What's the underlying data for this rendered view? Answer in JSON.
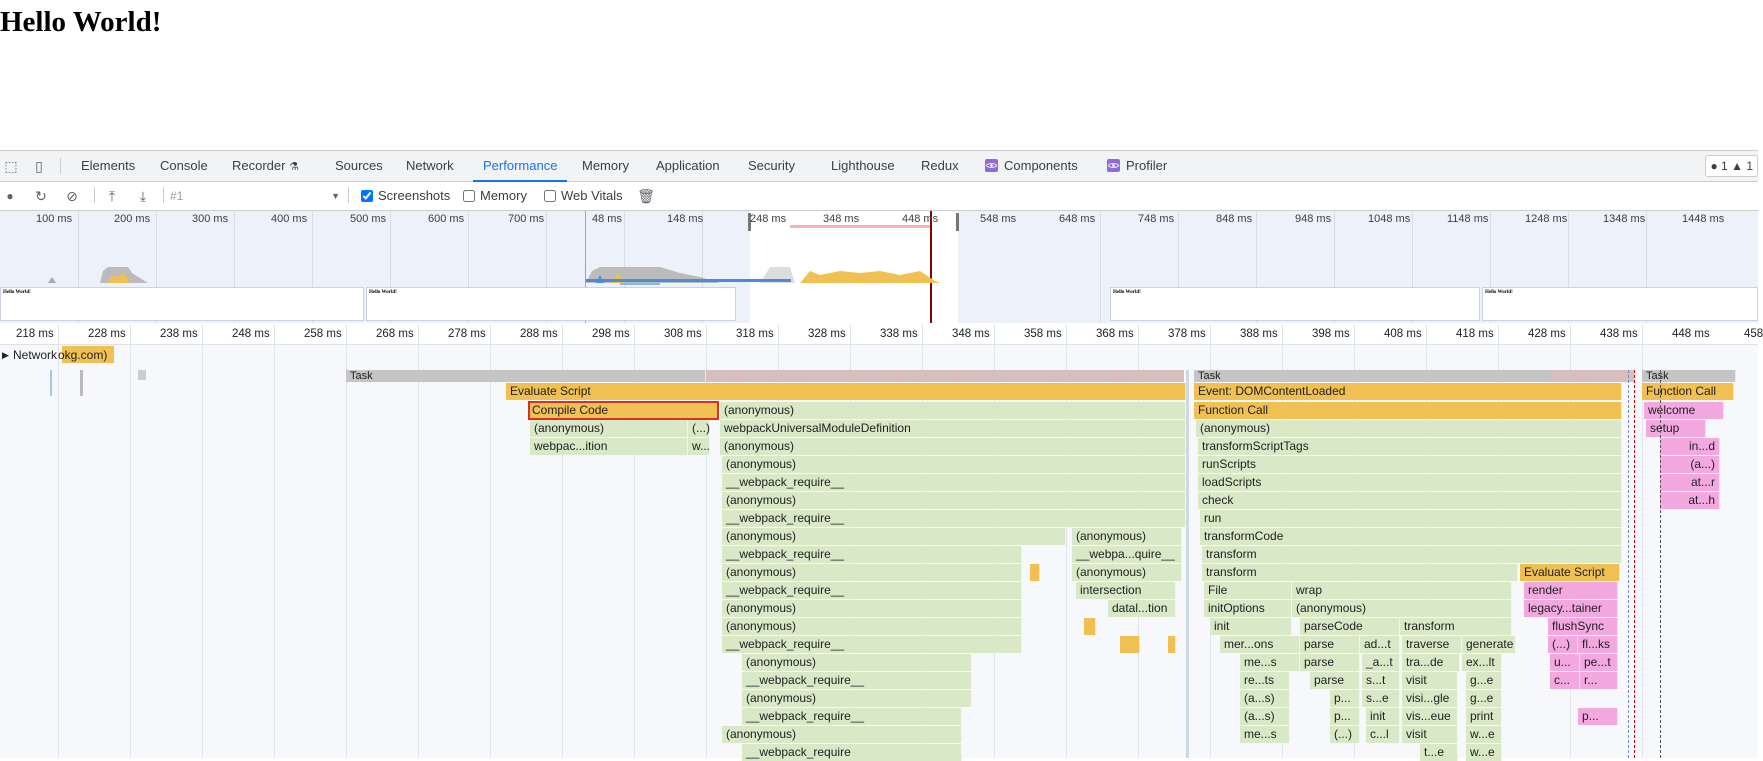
{
  "page": {
    "heading": "Hello World!"
  },
  "devtools": {
    "tabs": [
      "Elements",
      "Console",
      "Recorder",
      "Sources",
      "Network",
      "Performance",
      "Memory",
      "Application",
      "Security",
      "Lighthouse",
      "Redux",
      "Components",
      "Profiler"
    ],
    "active_tab": "Performance",
    "counters": {
      "errors": "1",
      "warnings": "1"
    },
    "toolbar": {
      "profile": "#1",
      "screenshots_label": "Screenshots",
      "screenshots_checked": true,
      "memory_label": "Memory",
      "memory_checked": false,
      "web_vitals_label": "Web Vitals",
      "web_vitals_checked": false
    },
    "overview": {
      "ticks": [
        "100 ms",
        "200 ms",
        "300 ms",
        "400 ms",
        "500 ms",
        "600 ms",
        "700 ms",
        "48 ms",
        "148 ms",
        "248 ms",
        "348 ms",
        "448 ms",
        "548 ms",
        "648 ms",
        "748 ms",
        "848 ms",
        "948 ms",
        "1048 ms",
        "1148 ms",
        "1248 ms",
        "1348 ms",
        "1448 ms"
      ],
      "screenshot_text": "Hello World!"
    },
    "flame": {
      "ticks": [
        "218 ms",
        "228 ms",
        "238 ms",
        "248 ms",
        "258 ms",
        "268 ms",
        "278 ms",
        "288 ms",
        "298 ms",
        "308 ms",
        "318 ms",
        "328 ms",
        "338 ms",
        "348 ms",
        "358 ms",
        "368 ms",
        "378 ms",
        "388 ms",
        "398 ms",
        "408 ms",
        "418 ms",
        "428 ms",
        "438 ms",
        "448 ms",
        "458"
      ],
      "network_label": "Network",
      "network_suffix": "okg.com)",
      "task_label": "Task",
      "evaluate_script": "Evaluate Script",
      "compile_code": "Compile Code",
      "left_stack": [
        "(anonymous)",
        "webpackUniversalModuleDefinition",
        "(anonymous)",
        "(anonymous)",
        "__webpack_require__",
        "(anonymous)",
        "__webpack_require__",
        "(anonymous)",
        "__webpack_require__",
        "(anonymous)",
        "__webpack_require__",
        "(anonymous)",
        "(anonymous)",
        "__webpack_require__",
        "(anonymous)",
        "__webpack_require__",
        "(anonymous)",
        "__webpack_require__",
        "(anonymous)",
        "__webpack_require"
      ],
      "compile_children": [
        "(anonymous)",
        "(...)",
        "webpac...ition",
        "w..."
      ],
      "mid_stack": [
        "(anonymous)",
        "__webpa...quire__",
        "(anonymous)",
        "intersection",
        "datal...tion"
      ],
      "right_stack": [
        "Event: DOMContentLoaded",
        "Function Call",
        "(anonymous)",
        "transformScriptTags",
        "runScripts",
        "loadScripts",
        "check",
        "run",
        "transformCode",
        "transform",
        "transform"
      ],
      "right_lower": {
        "file": "File",
        "wrap": "wrap",
        "init_options": "initOptions",
        "anon": "(anonymous)",
        "init": "init",
        "parse_code": "parseCode",
        "transform": "transform",
        "row4": [
          "mer...ons",
          "parse",
          "ad...t",
          "traverse",
          "generate"
        ],
        "row5": [
          "me...s",
          "parse",
          "_a...t",
          "tra...de",
          "ex...lt"
        ],
        "row6": [
          "re...ts",
          "parse",
          "s...t",
          "visit",
          "g...e"
        ],
        "row7": [
          "(a...s)",
          "p...",
          "s...e",
          "visi...gle",
          "g...e"
        ],
        "row8": [
          "(a...s)",
          "p...",
          "init",
          "vis...eue",
          "print"
        ],
        "row9": [
          "me...s",
          "(...)",
          "c...l",
          "visit",
          "w...e"
        ],
        "row10": [
          "t...e",
          "w...e"
        ]
      },
      "eval2": {
        "title": "Evaluate Script",
        "rows": [
          "render",
          "legacy...tainer",
          "flushSync",
          "(...)",
          "fl...ks",
          "u...",
          "pe...t",
          "c...",
          "r...",
          "p..."
        ]
      },
      "far_right": [
        "Function Call",
        "welcome",
        "setup",
        "in...d",
        "(a...)",
        "at...r",
        "at...h"
      ]
    }
  }
}
